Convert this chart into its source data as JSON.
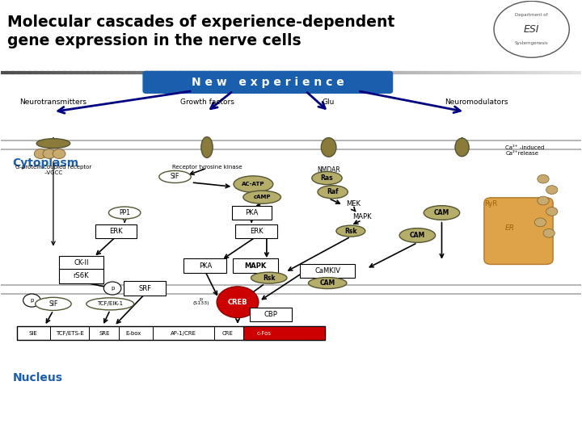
{
  "title": "Molecular cascades of experience-dependent\ngene expression in the nerve cells",
  "bg_color": "#ffffff",
  "title_color": "#000000",
  "new_experience_color": "#1a5fad",
  "new_experience_text": "N e w   e x p e r i e n c e",
  "categories": [
    "Neurotransmitters",
    "Growth factors",
    "Glu",
    "Neuromodulators"
  ],
  "cytoplasm_color": "#1a5fad",
  "nucleus_color": "#1a5fad",
  "creb_color": "#cc0000",
  "cfos_color": "#cc0000",
  "box_color": "#000000",
  "arrow_color": "#000000",
  "olive_color": "#8B7B3A",
  "light_olive": "#B5AD6A",
  "tan_blob": "#C8A96E",
  "dark_navy": "#000080"
}
